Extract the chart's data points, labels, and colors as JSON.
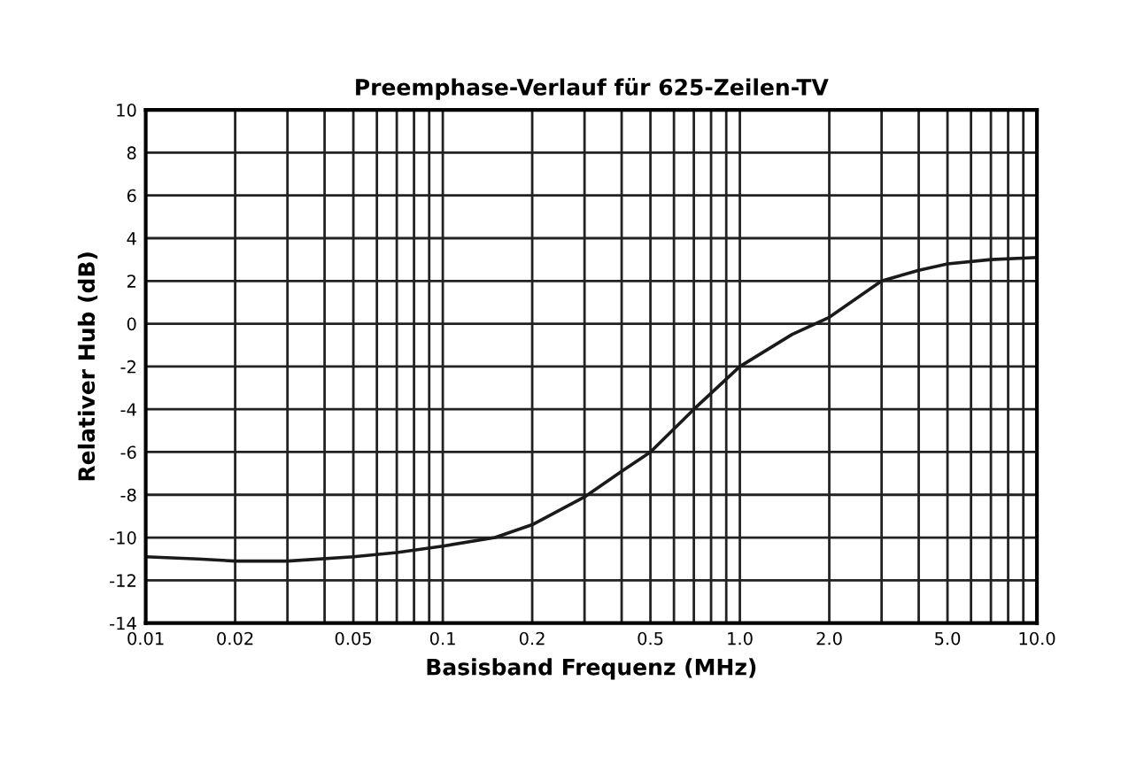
{
  "chart_data": {
    "type": "line",
    "title": "Preemphase-Verlauf für 625-Zeilen-TV",
    "xlabel": "Basisband Frequenz (MHz)",
    "ylabel": "Relativer Hub (dB)",
    "log": "x",
    "grid": true,
    "legend": false,
    "marker": "none",
    "line_style": "solid",
    "xlim": [
      0.01,
      10.0
    ],
    "xticks": [
      0.01,
      0.02,
      0.05,
      {
        "value": 0.1,
        "label": "0.1"
      },
      {
        "value": 0.2,
        "label": "0.2"
      },
      0.5,
      {
        "value": 1.0,
        "label": "1.0"
      },
      {
        "value": 2.0,
        "label": "2.0"
      },
      {
        "value": 5.0,
        "label": "5.0"
      },
      {
        "value": 10.0,
        "label": "10.0"
      }
    ],
    "ylim": [
      -14,
      10
    ],
    "yticks": [
      -14,
      -12,
      -10,
      -8,
      -6,
      -4,
      -2,
      0,
      2,
      4,
      6,
      8,
      10
    ],
    "x": [
      0.01,
      0.015,
      0.02,
      0.03,
      0.05,
      0.07,
      0.1,
      0.15,
      0.2,
      0.3,
      0.4,
      0.5,
      0.7,
      1.0,
      1.5,
      2.0,
      3.0,
      4.0,
      5.0,
      7.0,
      10.0
    ],
    "series": [
      {
        "color": "#1a1a1a",
        "values": [
          -10.9,
          -11.0,
          -11.1,
          -11.1,
          -10.9,
          -10.7,
          -10.4,
          -10.0,
          -9.4,
          -8.1,
          -6.9,
          -6.0,
          -4.0,
          -2.0,
          -0.5,
          0.3,
          2.0,
          2.5,
          2.8,
          3.0,
          3.1
        ]
      }
    ]
  }
}
